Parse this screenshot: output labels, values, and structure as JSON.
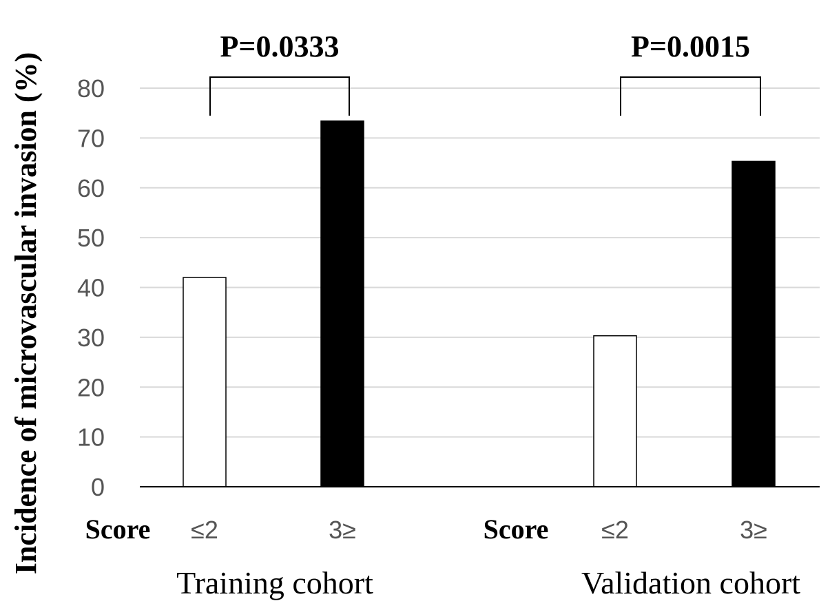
{
  "chart_data": {
    "type": "bar",
    "ylabel": "Incidence of microvascular invasion (%)",
    "ylim": [
      0,
      80
    ],
    "yticks": [
      0,
      10,
      20,
      30,
      40,
      50,
      60,
      70,
      80
    ],
    "grid": true,
    "score_label": "Score",
    "groups": [
      {
        "name": "Training cohort",
        "p_value": "P=0.0333",
        "categories": [
          "≤2",
          "3≥"
        ],
        "values": [
          42,
          73.4
        ],
        "colors": [
          "#ffffff",
          "#000000"
        ]
      },
      {
        "name": "Validation cohort",
        "p_value": "P=0.0015",
        "categories": [
          "≤2",
          "3≥"
        ],
        "values": [
          30.3,
          65.3
        ],
        "colors": [
          "#ffffff",
          "#000000"
        ]
      }
    ]
  }
}
